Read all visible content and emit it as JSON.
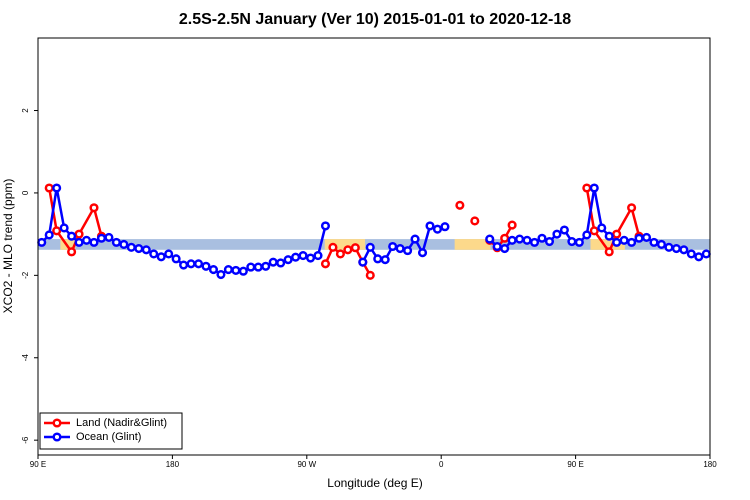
{
  "chart_data": {
    "type": "line",
    "title": "2.5S-2.5N January (Ver 10)   2015-01-01 to 2020-12-18",
    "x_label": "Longitude (deg E)",
    "y_label": "XCO2 - MLO trend (ppm)",
    "xlim": [
      90,
      540
    ],
    "xticks": [
      {
        "value": 90,
        "label": "90 E"
      },
      {
        "value": 180,
        "label": "180"
      },
      {
        "value": 270,
        "label": "90 W"
      },
      {
        "value": 360,
        "label": "0"
      },
      {
        "value": 450,
        "label": "90 E"
      },
      {
        "value": 540,
        "label": "180"
      }
    ],
    "ylim": [
      -6.36,
      3.76
    ],
    "yticks": [
      -6,
      -4,
      -2,
      0,
      2
    ],
    "band": {
      "range": [
        -1.38,
        -1.12
      ],
      "color": "#a9bfe0"
    },
    "band_highlights": {
      "color": "#fcd98b",
      "x": [
        [
          105,
          115
        ],
        [
          282,
          309
        ],
        [
          369,
          393
        ],
        [
          460,
          483
        ]
      ]
    },
    "legend": "bottom-left",
    "series": [
      {
        "name": "Land (Nadir&Glint)",
        "color": "#ff0000",
        "x": [
          97.5,
          102.5,
          112.5,
          117.5,
          127.5,
          132.5,
          137.5,
          282.5,
          287.5,
          292.5,
          297.5,
          302.5,
          307.5,
          312.5,
          317.5,
          372.5,
          377.5,
          382.5,
          387.5,
          392.5,
          397.5,
          402.5,
          407.5,
          412.5,
          457.5,
          462.5,
          472.5,
          477.5,
          487.5,
          492.5
        ],
        "values": [
          0.12,
          -0.92,
          -1.43,
          -1.0,
          -0.36,
          -1.05,
          null,
          -1.72,
          -1.32,
          -1.48,
          -1.38,
          -1.33,
          -1.68,
          -2.0,
          null,
          -0.3,
          null,
          -0.68,
          null,
          -1.15,
          -1.33,
          -1.1,
          -0.78,
          null,
          0.12,
          -0.92,
          -1.43,
          -1.0,
          -0.36,
          -1.05
        ]
      },
      {
        "name": "Ocean (Glint)",
        "color": "#0000ff",
        "x": [
          92.5,
          97.5,
          102.5,
          107.5,
          112.5,
          117.5,
          122.5,
          127.5,
          132.5,
          137.5,
          142.5,
          147.5,
          152.5,
          157.5,
          162.5,
          167.5,
          172.5,
          177.5,
          182.5,
          187.5,
          192.5,
          197.5,
          202.5,
          207.5,
          212.5,
          217.5,
          222.5,
          227.5,
          232.5,
          237.5,
          242.5,
          247.5,
          252.5,
          257.5,
          262.5,
          267.5,
          272.5,
          277.5,
          282.5,
          287.5,
          292.5,
          297.5,
          302.5,
          307.5,
          312.5,
          317.5,
          322.5,
          327.5,
          332.5,
          337.5,
          342.5,
          347.5,
          352.5,
          357.5,
          362.5,
          367.5,
          372.5,
          377.5,
          382.5,
          387.5,
          392.5,
          397.5,
          402.5,
          407.5,
          412.5,
          417.5,
          422.5,
          427.5,
          432.5,
          437.5,
          442.5,
          447.5,
          452.5,
          457.5,
          462.5,
          467.5,
          472.5,
          477.5,
          482.5,
          487.5,
          492.5,
          497.5,
          502.5,
          507.5,
          512.5,
          517.5,
          522.5,
          527.5,
          532.5,
          537.5
        ],
        "values": [
          -1.2,
          -1.02,
          0.12,
          -0.85,
          -1.05,
          -1.2,
          -1.15,
          -1.2,
          -1.1,
          -1.08,
          -1.2,
          -1.25,
          -1.32,
          -1.35,
          -1.38,
          -1.48,
          -1.55,
          -1.48,
          -1.6,
          -1.75,
          -1.72,
          -1.72,
          -1.78,
          -1.86,
          -1.98,
          -1.86,
          -1.88,
          -1.9,
          -1.8,
          -1.8,
          -1.78,
          -1.68,
          -1.7,
          -1.62,
          -1.56,
          -1.52,
          -1.58,
          -1.52,
          -0.8,
          null,
          null,
          null,
          null,
          -1.68,
          -1.32,
          -1.6,
          -1.62,
          -1.3,
          -1.35,
          -1.4,
          -1.12,
          -1.45,
          -0.8,
          -0.88,
          -0.82,
          null,
          null,
          null,
          null,
          null,
          -1.12,
          -1.3,
          -1.35,
          -1.15,
          -1.12,
          -1.15,
          -1.2,
          -1.1,
          -1.18,
          -1.0,
          -0.9,
          -1.18,
          -1.2,
          -1.02,
          0.12,
          -0.85,
          -1.05,
          -1.2,
          -1.15,
          -1.2,
          -1.1,
          -1.08,
          -1.2,
          -1.25,
          -1.32,
          -1.35,
          -1.38,
          -1.48,
          -1.55,
          -1.48
        ]
      }
    ]
  }
}
